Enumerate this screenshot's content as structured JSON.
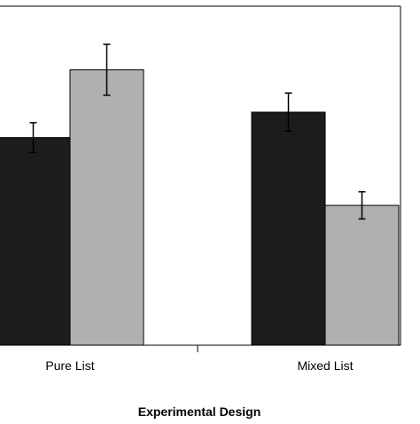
{
  "chart_data": {
    "type": "bar",
    "categories": [
      "Pure List",
      "Mixed List"
    ],
    "series": [
      {
        "values": [
          49,
          55
        ],
        "errors": [
          3.5,
          4.5
        ],
        "color": "#1c1c1c"
      },
      {
        "values": [
          65,
          33
        ],
        "errors": [
          6,
          3.2
        ],
        "color": "#b0b0b0"
      }
    ],
    "xlabel": "Experimental Design",
    "ylabel": "",
    "ylim": [
      0,
      80
    ]
  }
}
